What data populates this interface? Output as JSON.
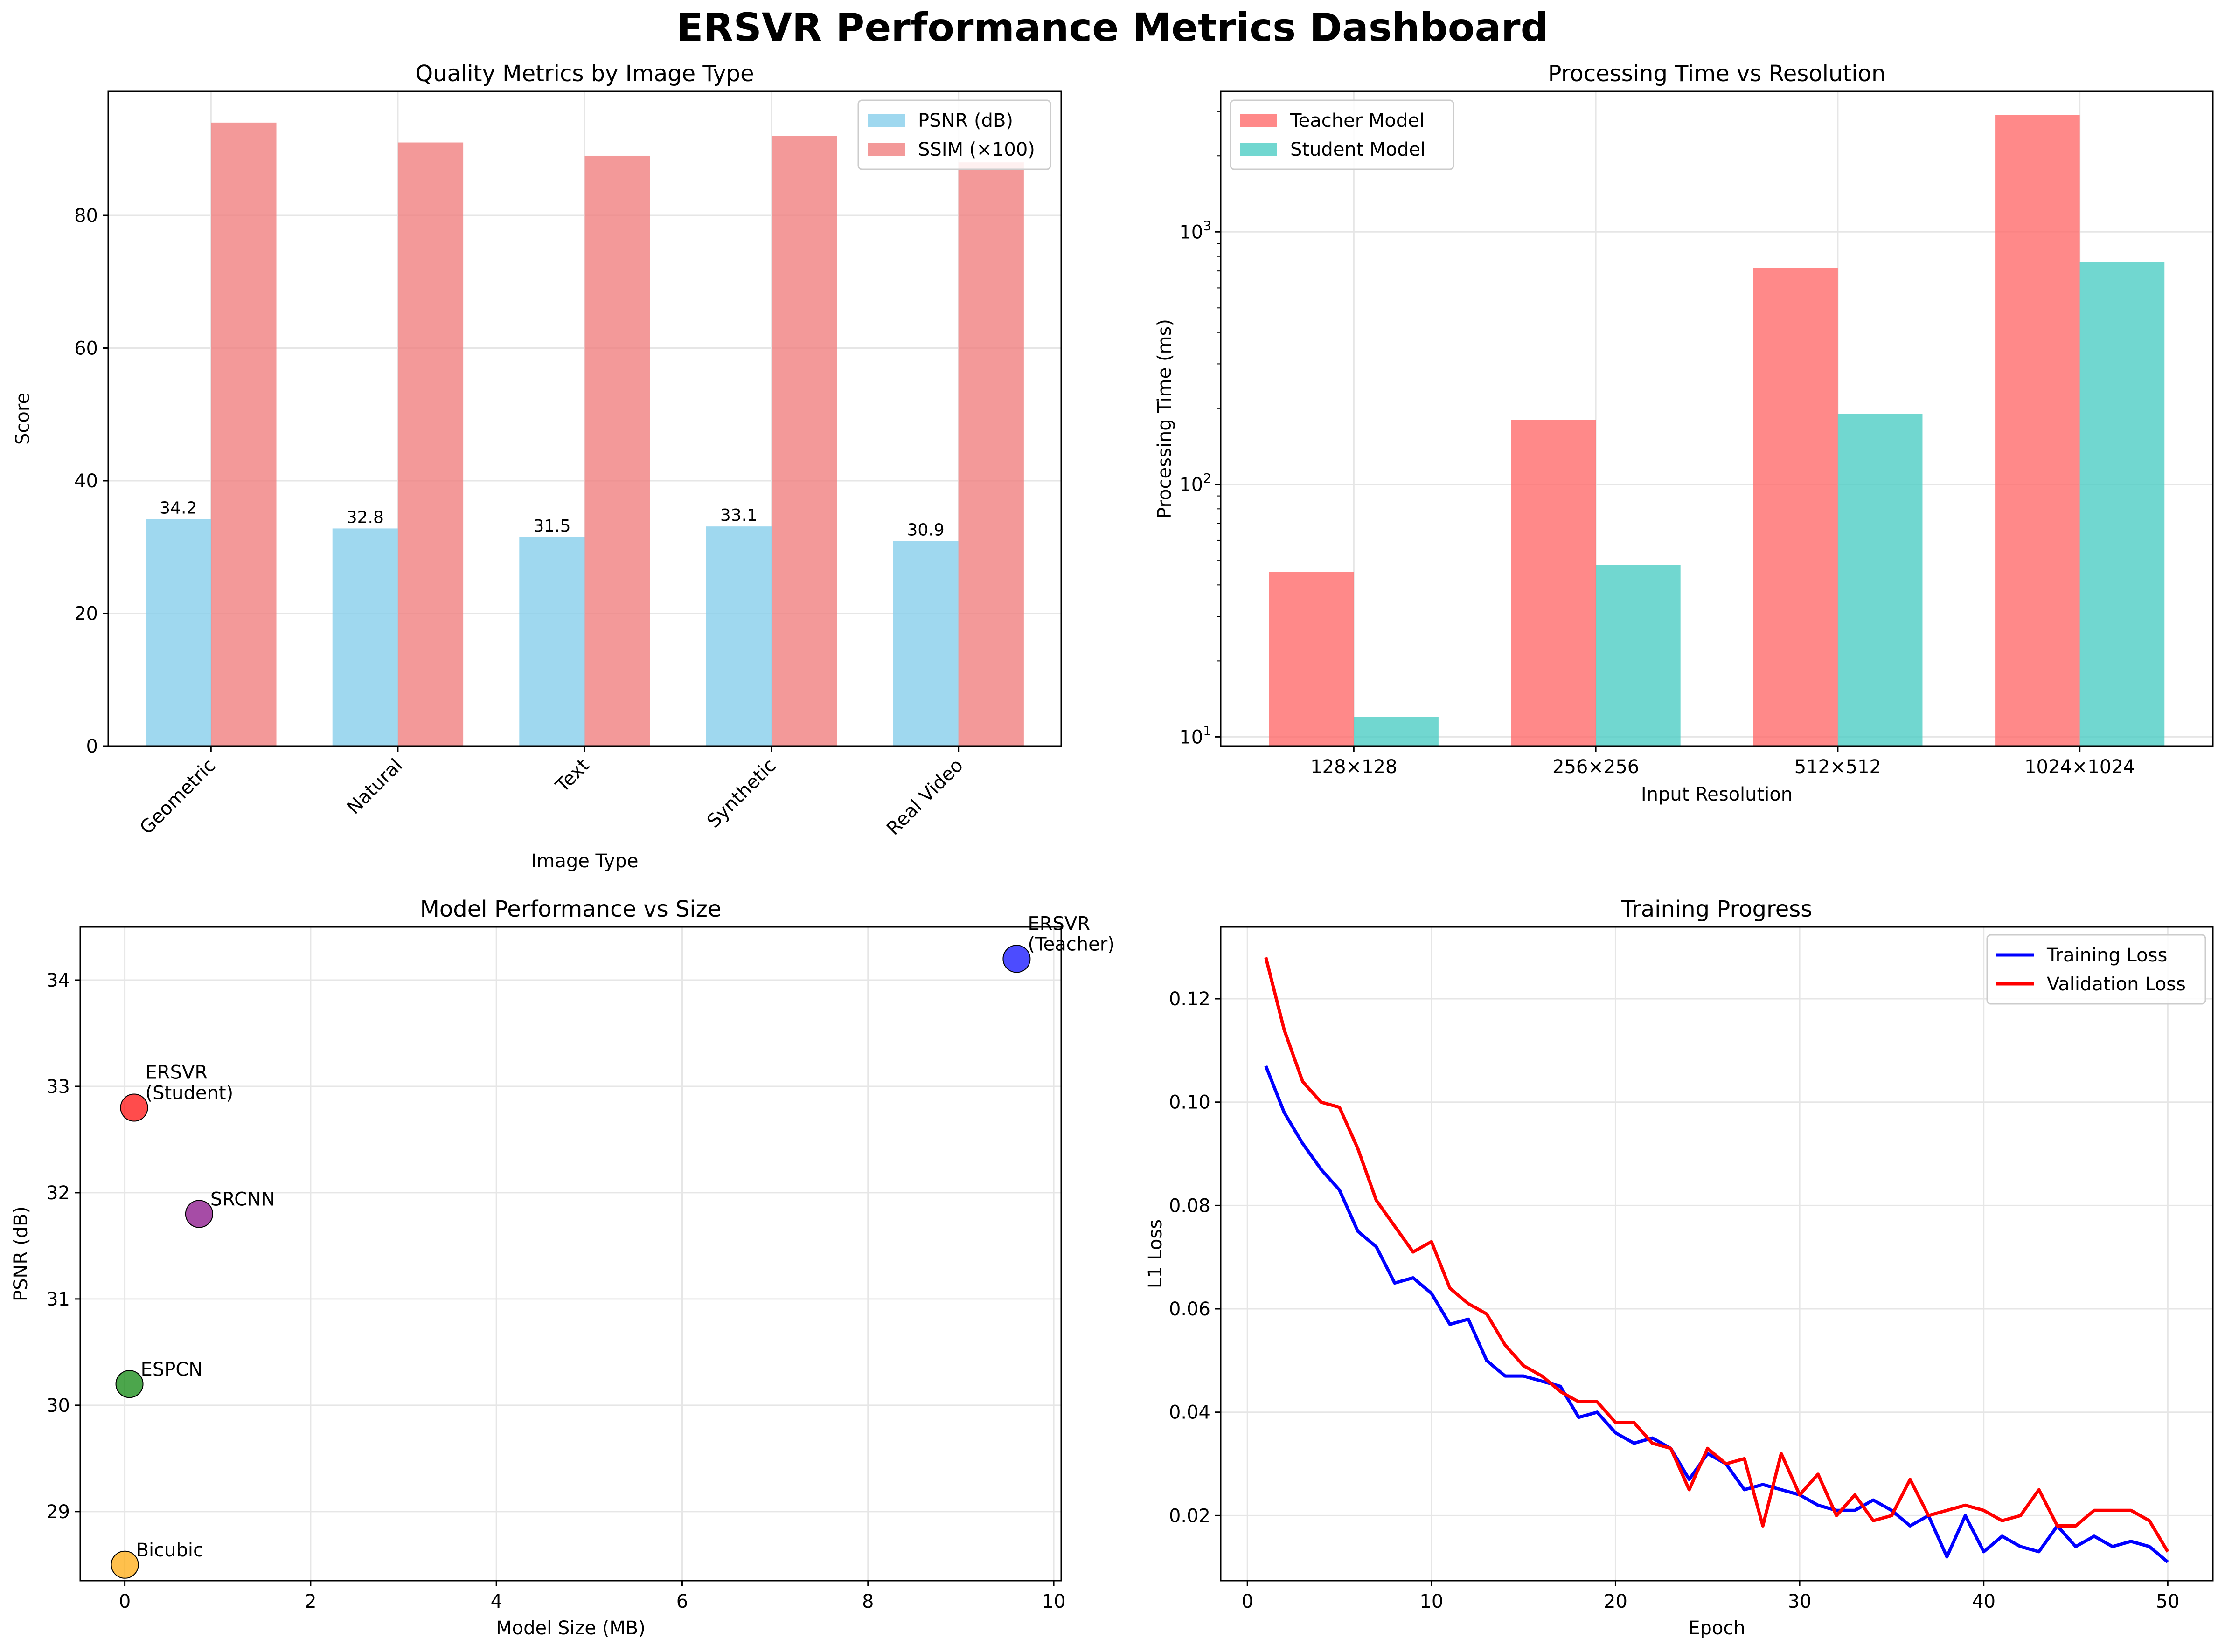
{
  "dashboard": {
    "title": "ERSVR Performance Metrics Dashboard"
  },
  "chart_data": [
    {
      "type": "bar",
      "title": "Quality Metrics by Image Type",
      "xlabel": "Image Type",
      "ylabel": "Score",
      "categories": [
        "Geometric",
        "Natural",
        "Text",
        "Synthetic",
        "Real Video"
      ],
      "series": [
        {
          "name": "PSNR (dB)",
          "values": [
            34.2,
            32.8,
            31.5,
            33.1,
            30.9
          ],
          "color": "#87ceeb"
        },
        {
          "name": "SSIM (×100)",
          "values": [
            94,
            91,
            89,
            92,
            88
          ],
          "color": "#f08080"
        }
      ],
      "data_labels": [
        "34.2",
        "32.8",
        "31.5",
        "33.1",
        "30.9"
      ],
      "yticks": [
        0,
        20,
        40,
        60,
        80
      ],
      "ylim": [
        0,
        98.7
      ],
      "grid": true,
      "legend": "top-right"
    },
    {
      "type": "bar",
      "title": "Processing Time vs Resolution",
      "xlabel": "Input Resolution",
      "ylabel": "Processing Time (ms)",
      "yscale": "log",
      "categories": [
        "128×128",
        "256×256",
        "512×512",
        "1024×1024"
      ],
      "series": [
        {
          "name": "Teacher Model",
          "values": [
            45,
            180,
            720,
            2900
          ],
          "color": "#ff6b6b"
        },
        {
          "name": "Student Model",
          "values": [
            12,
            48,
            190,
            760
          ],
          "color": "#4ecdc4"
        }
      ],
      "yticks": [
        {
          "base": "10",
          "exp": "1",
          "value": 10
        },
        {
          "base": "10",
          "exp": "2",
          "value": 100
        },
        {
          "base": "10",
          "exp": "3",
          "value": 1000
        }
      ],
      "ylim": [
        9.2,
        3600
      ],
      "grid": true,
      "legend": "top-left"
    },
    {
      "type": "scatter",
      "title": "Model Performance vs Size",
      "xlabel": "Model Size (MB)",
      "ylabel": "PSNR (dB)",
      "points": [
        {
          "label_lines": [
            "ERSVR",
            "(Teacher)"
          ],
          "x": 9.6,
          "y": 34.2,
          "color": "#0000ff"
        },
        {
          "label_lines": [
            "ERSVR",
            "(Student)"
          ],
          "x": 0.1,
          "y": 32.8,
          "color": "#ff0000"
        },
        {
          "label_lines": [
            "SRCNN"
          ],
          "x": 0.8,
          "y": 31.8,
          "color": "#800080"
        },
        {
          "label_lines": [
            "ESPCN"
          ],
          "x": 0.05,
          "y": 30.2,
          "color": "#008000"
        },
        {
          "label_lines": [
            "Bicubic"
          ],
          "x": 0.0,
          "y": 28.5,
          "color": "#ffa500"
        }
      ],
      "xticks": [
        0,
        2,
        4,
        6,
        8,
        10
      ],
      "yticks": [
        29,
        30,
        31,
        32,
        33,
        34
      ],
      "xlim": [
        -0.48,
        10.08
      ],
      "ylim": [
        28.35,
        34.5
      ],
      "grid": true
    },
    {
      "type": "line",
      "title": "Training Progress",
      "xlabel": "Epoch",
      "ylabel": "L1 Loss",
      "x": [
        1,
        2,
        3,
        4,
        5,
        6,
        7,
        8,
        9,
        10,
        11,
        12,
        13,
        14,
        15,
        16,
        17,
        18,
        19,
        20,
        21,
        22,
        23,
        24,
        25,
        26,
        27,
        28,
        29,
        30,
        31,
        32,
        33,
        34,
        35,
        36,
        37,
        38,
        39,
        40,
        41,
        42,
        43,
        44,
        45,
        46,
        47,
        48,
        49,
        50
      ],
      "series": [
        {
          "name": "Training Loss",
          "color": "#0000ff",
          "values": [
            0.107,
            0.098,
            0.092,
            0.087,
            0.083,
            0.075,
            0.072,
            0.065,
            0.066,
            0.063,
            0.057,
            0.058,
            0.05,
            0.047,
            0.047,
            0.046,
            0.045,
            0.039,
            0.04,
            0.036,
            0.034,
            0.035,
            0.033,
            0.027,
            0.032,
            0.03,
            0.025,
            0.026,
            0.025,
            0.024,
            0.022,
            0.021,
            0.021,
            0.023,
            0.021,
            0.018,
            0.02,
            0.012,
            0.02,
            0.013,
            0.016,
            0.014,
            0.013,
            0.018,
            0.014,
            0.016,
            0.014,
            0.015,
            0.014,
            0.011
          ]
        },
        {
          "name": "Validation Loss",
          "color": "#ff0000",
          "values": [
            0.128,
            0.114,
            0.104,
            0.1,
            0.099,
            0.091,
            0.081,
            0.076,
            0.071,
            0.073,
            0.064,
            0.061,
            0.059,
            0.053,
            0.049,
            0.047,
            0.044,
            0.042,
            0.042,
            0.038,
            0.038,
            0.034,
            0.033,
            0.025,
            0.033,
            0.03,
            0.031,
            0.018,
            0.032,
            0.024,
            0.028,
            0.02,
            0.024,
            0.019,
            0.02,
            0.027,
            0.02,
            0.021,
            0.022,
            0.021,
            0.019,
            0.02,
            0.025,
            0.018,
            0.018,
            0.021,
            0.021,
            0.021,
            0.019,
            0.013
          ]
        }
      ],
      "xticks": [
        0,
        10,
        20,
        30,
        40,
        50
      ],
      "yticks": [
        0.02,
        0.04,
        0.06,
        0.08,
        0.1,
        0.12
      ],
      "ytick_labels": [
        "0.02",
        "0.04",
        "0.06",
        "0.08",
        "0.10",
        "0.12"
      ],
      "xlim": [
        -1.45,
        52.45
      ],
      "ylim": [
        0.0074,
        0.1339
      ],
      "grid": true,
      "legend": "top-right"
    }
  ]
}
